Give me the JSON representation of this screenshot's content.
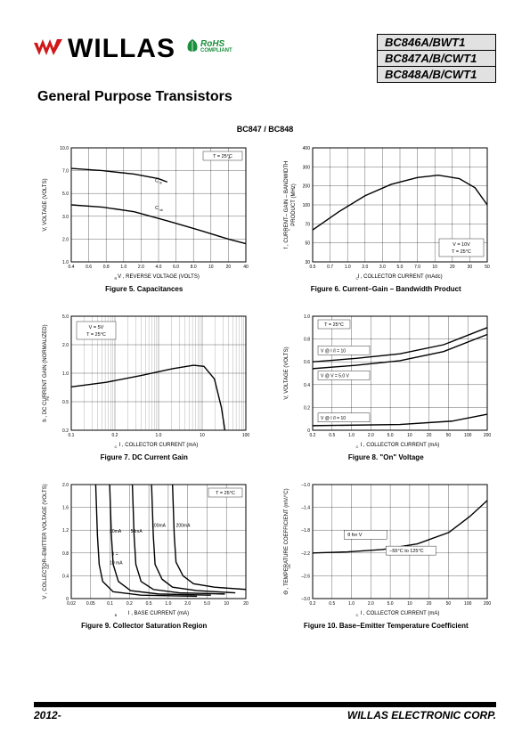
{
  "brand": "WILLAS",
  "rohs": {
    "text": "RoHS",
    "sub": "COMPLIANT",
    "color": "#1a8f3c"
  },
  "subtitle": "General Purpose Transistors",
  "parts": [
    "BC846A/BWT1",
    "BC847A/B/CWT1",
    "BC848A/B/CWT1"
  ],
  "section_label": "BC847 / BC848",
  "footer": {
    "left": "2012-",
    "right": "WILLAS ELECTRONIC CORP."
  },
  "logo_color": "#d01818",
  "axis_fontsize": 6,
  "tick_fontsize": 5.5,
  "grid_color": "#000",
  "charts": {
    "fig5": {
      "caption": "Figure 5. Capacitances",
      "xlabel": "V , REVERSE VOLTAGE  (VOLTS)",
      "xsub": "R",
      "ylabel": "V, VOLTAGE (VOLTS)",
      "xticks": [
        "0.4",
        "0.6",
        "0.8",
        "1.0",
        "2.0",
        "4.0",
        "6.0",
        "8.0",
        "10",
        "20",
        "40"
      ],
      "yticks": [
        "1.0",
        "2.0",
        "3.0",
        "5.0",
        "7.0",
        "10.0"
      ],
      "annot": [
        "T  = 25°C",
        "C",
        "C"
      ],
      "annot_sub": [
        "A",
        "ib",
        "ob"
      ],
      "series": [
        {
          "name": "Cib",
          "pts": [
            [
              0,
              0.82
            ],
            [
              0.18,
              0.8
            ],
            [
              0.36,
              0.77
            ],
            [
              0.5,
              0.73
            ],
            [
              0.55,
              0.7
            ]
          ]
        },
        {
          "name": "Cob",
          "pts": [
            [
              0,
              0.5
            ],
            [
              0.18,
              0.48
            ],
            [
              0.36,
              0.44
            ],
            [
              0.55,
              0.36
            ],
            [
              0.73,
              0.28
            ],
            [
              0.9,
              0.2
            ],
            [
              1.0,
              0.16
            ]
          ]
        }
      ]
    },
    "fig6": {
      "caption": "Figure 6. Current–Gain – Bandwidth Product",
      "xlabel": "I  , COLLECTOR CURRENT (mAdc)",
      "xsub": "C",
      "ylabel": "f  , CURRENT– GAIN – BANDWIDTH",
      "ylabel2": "PRODUCT (MHz)",
      "ysub": "T",
      "xticks": [
        "0.5",
        "0.7",
        "1.0",
        "2.0",
        "3.0",
        "5.0",
        "7.0",
        "10",
        "20",
        "30",
        "50"
      ],
      "yticks": [
        "30",
        "50",
        "70",
        "100",
        "200",
        "300",
        "400"
      ],
      "annot": [
        "V   = 10V",
        "T  = 25°C"
      ],
      "annot_sub": [
        "CE",
        "A"
      ],
      "series": [
        {
          "pts": [
            [
              0,
              0.28
            ],
            [
              0.15,
              0.44
            ],
            [
              0.3,
              0.58
            ],
            [
              0.45,
              0.68
            ],
            [
              0.6,
              0.74
            ],
            [
              0.72,
              0.76
            ],
            [
              0.84,
              0.73
            ],
            [
              0.93,
              0.65
            ],
            [
              1.0,
              0.5
            ]
          ]
        }
      ]
    },
    "fig7": {
      "caption": "Figure 7. DC Current Gain",
      "xlabel": "I  , COLLECTOR CURRENT (mA)",
      "xsub": "C",
      "ylabel": "h   , DC CURRENT GAIN (NORMALIZED)",
      "ysub": "FE",
      "xticks": [
        "0.1",
        "0.2",
        "1.0",
        "10",
        "100"
      ],
      "yticks": [
        "0.2",
        "0.5",
        "1.0",
        "2.0",
        "5.0"
      ],
      "annot": [
        "V   = 5V",
        "T  = 25°C"
      ],
      "annot_sub": [
        "CE",
        "A"
      ],
      "series": [
        {
          "pts": [
            [
              0,
              0.38
            ],
            [
              0.2,
              0.42
            ],
            [
              0.4,
              0.48
            ],
            [
              0.58,
              0.54
            ],
            [
              0.7,
              0.57
            ],
            [
              0.76,
              0.56
            ],
            [
              0.82,
              0.45
            ],
            [
              0.86,
              0.2
            ],
            [
              0.88,
              0.0
            ]
          ]
        }
      ]
    },
    "fig8": {
      "caption": "Figure 8. \"On\" Voltage",
      "xlabel": "I  , COLLECTOR CURRENT (mA)",
      "xsub": "C",
      "ylabel": "V, VOLTAGE (VOLTS)",
      "xticks": [
        "0.2",
        "0.5",
        "1.0",
        "2.0",
        "5.0",
        "10",
        "20",
        "50",
        "100",
        "200"
      ],
      "yticks": [
        "0",
        "0.2",
        "0.4",
        "0.6",
        "0.8",
        "1.0"
      ],
      "annot": [
        "T  = 25°C",
        "V      @ I  /I  = 10",
        "V   @ V   = 5.0 V",
        "V       @ I  /I  = 10"
      ],
      "annot_sub": [
        "A",
        "BE(sat)    C   B",
        "on      CE",
        "CE(sat)    C   B"
      ],
      "series": [
        {
          "pts": [
            [
              0,
              0.6
            ],
            [
              0.25,
              0.63
            ],
            [
              0.5,
              0.67
            ],
            [
              0.75,
              0.75
            ],
            [
              1.0,
              0.9
            ]
          ]
        },
        {
          "pts": [
            [
              0,
              0.54
            ],
            [
              0.25,
              0.57
            ],
            [
              0.5,
              0.61
            ],
            [
              0.75,
              0.69
            ],
            [
              1.0,
              0.84
            ]
          ]
        },
        {
          "pts": [
            [
              0,
              0.04
            ],
            [
              0.5,
              0.05
            ],
            [
              0.8,
              0.08
            ],
            [
              1.0,
              0.14
            ]
          ]
        }
      ]
    },
    "fig9": {
      "caption": "Figure 9. Collector Saturation Region",
      "xlabel": "I  , BASE CURRENT (mA)",
      "xsub": "B",
      "ylabel": "V   , COLLECTOR–EMITTER VOLTAGE (VOLTS)",
      "ysub": "CE",
      "xticks": [
        "0.02",
        "0.05",
        "0.1",
        "0.2",
        "0.5",
        "1.0",
        "2.0",
        "5.0",
        "10",
        "20"
      ],
      "yticks": [
        "0",
        "0.4",
        "0.8",
        "1.2",
        "1.6",
        "2.0"
      ],
      "annot": [
        "T  = 25°C",
        "I  =",
        "10 mA",
        "20mA",
        "50mA",
        "100mA",
        "200mA"
      ],
      "annot_sub": [
        "A",
        "C",
        "",
        "",
        "",
        "",
        ""
      ],
      "series": [
        {
          "pts": [
            [
              0.14,
              1.0
            ],
            [
              0.15,
              0.55
            ],
            [
              0.16,
              0.3
            ],
            [
              0.18,
              0.15
            ],
            [
              0.24,
              0.06
            ],
            [
              0.4,
              0.03
            ],
            [
              0.72,
              0.02
            ]
          ]
        },
        {
          "pts": [
            [
              0.22,
              1.0
            ],
            [
              0.23,
              0.55
            ],
            [
              0.24,
              0.3
            ],
            [
              0.27,
              0.15
            ],
            [
              0.34,
              0.07
            ],
            [
              0.5,
              0.04
            ],
            [
              0.8,
              0.03
            ]
          ]
        },
        {
          "pts": [
            [
              0.35,
              1.0
            ],
            [
              0.36,
              0.55
            ],
            [
              0.37,
              0.3
            ],
            [
              0.4,
              0.15
            ],
            [
              0.47,
              0.08
            ],
            [
              0.62,
              0.05
            ],
            [
              0.88,
              0.04
            ]
          ]
        },
        {
          "pts": [
            [
              0.46,
              1.0
            ],
            [
              0.47,
              0.55
            ],
            [
              0.48,
              0.3
            ],
            [
              0.52,
              0.17
            ],
            [
              0.58,
              0.1
            ],
            [
              0.72,
              0.07
            ],
            [
              0.94,
              0.05
            ]
          ]
        },
        {
          "pts": [
            [
              0.58,
              1.0
            ],
            [
              0.59,
              0.55
            ],
            [
              0.6,
              0.32
            ],
            [
              0.64,
              0.2
            ],
            [
              0.7,
              0.13
            ],
            [
              0.82,
              0.1
            ],
            [
              1.0,
              0.08
            ]
          ]
        }
      ]
    },
    "fig10": {
      "caption": "Figure 10. Base–Emitter Temperature Coefficient",
      "xlabel": "I  , COLLECTOR CURRENT (mA)",
      "xsub": "C",
      "ylabel": "Θ   , TEMPERATURE COEFFICIENT (mV/°C)",
      "ysub": "VB",
      "xticks": [
        "0.2",
        "0.5",
        "1.0",
        "2.0",
        "5.0",
        "10",
        "20",
        "50",
        "100",
        "200"
      ],
      "yticks": [
        "–3.0",
        "–2.6",
        "–2.2",
        "–1.8",
        "–1.4",
        "–1.0"
      ],
      "annot": [
        "θ    for V",
        "–55°C to 125°C"
      ],
      "annot_sub": [
        "VB         BE",
        ""
      ],
      "series": [
        {
          "pts": [
            [
              0,
              0.4
            ],
            [
              0.2,
              0.41
            ],
            [
              0.4,
              0.43
            ],
            [
              0.6,
              0.48
            ],
            [
              0.78,
              0.58
            ],
            [
              0.9,
              0.72
            ],
            [
              1.0,
              0.86
            ]
          ]
        }
      ]
    }
  }
}
